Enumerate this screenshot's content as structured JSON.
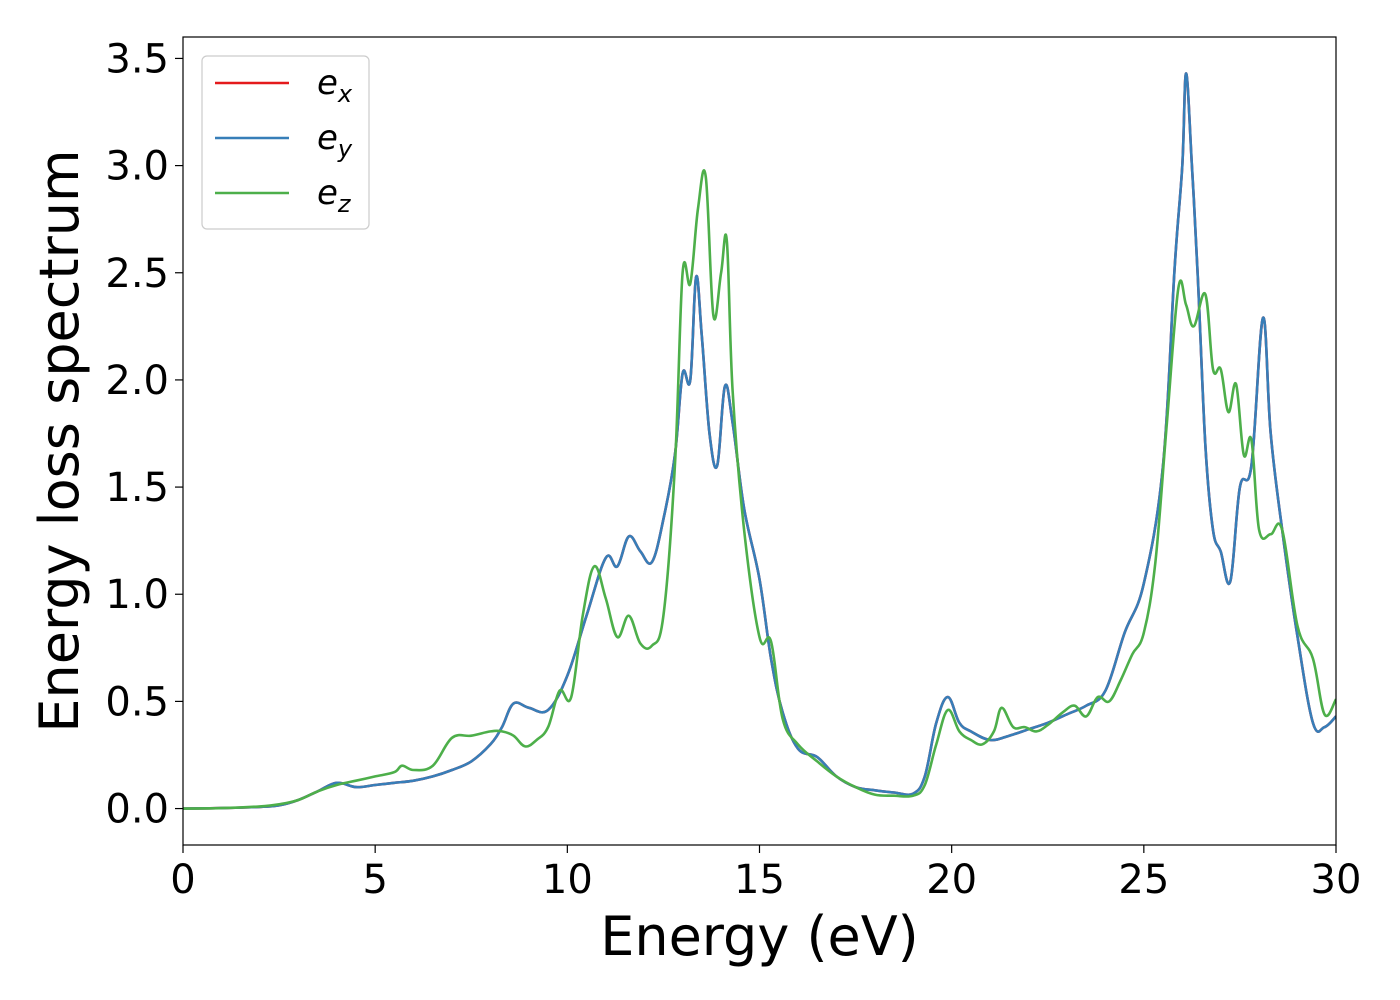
{
  "chart_data": {
    "type": "line",
    "title": "",
    "xlabel": "Energy (eV)",
    "ylabel": "Energy loss spectrum",
    "xlim": [
      0,
      30
    ],
    "ylim": [
      -0.17,
      3.6
    ],
    "xticks": [
      0,
      5,
      10,
      15,
      20,
      25,
      30
    ],
    "yticks": [
      0.0,
      0.5,
      1.0,
      1.5,
      2.0,
      2.5,
      3.0,
      3.5
    ],
    "xtick_labels": [
      "0",
      "5",
      "10",
      "15",
      "20",
      "25",
      "30"
    ],
    "ytick_labels": [
      "0.0",
      "0.5",
      "1.0",
      "1.5",
      "2.0",
      "2.5",
      "3.0",
      "3.5"
    ],
    "grid": false,
    "legend_position": "top-left",
    "series": [
      {
        "name_base": "e",
        "name_sub": "x",
        "color": "#e41a1c",
        "x": [
          0,
          1,
          2,
          2.5,
          3,
          3.5,
          4,
          4.5,
          5,
          5.5,
          6,
          6.5,
          7,
          7.5,
          8,
          8.3,
          8.6,
          9,
          9.5,
          10,
          10.5,
          11,
          11.3,
          11.6,
          11.9,
          12.2,
          12.5,
          12.8,
          13.0,
          13.2,
          13.35,
          13.5,
          13.7,
          13.9,
          14.1,
          14.3,
          14.6,
          15.0,
          15.3,
          15.6,
          16.0,
          16.5,
          17.0,
          17.5,
          18.0,
          18.5,
          19.0,
          19.3,
          19.6,
          19.9,
          20.2,
          20.5,
          21.0,
          21.5,
          22.0,
          22.5,
          23.0,
          23.5,
          24.0,
          24.5,
          25.0,
          25.5,
          25.8,
          26.0,
          26.1,
          26.25,
          26.4,
          26.6,
          26.8,
          27.0,
          27.25,
          27.5,
          27.8,
          28.1,
          28.3,
          28.6,
          29.0,
          29.4,
          29.7,
          30
        ],
        "y": [
          0,
          0.002,
          0.008,
          0.015,
          0.04,
          0.08,
          0.12,
          0.1,
          0.11,
          0.12,
          0.13,
          0.15,
          0.18,
          0.22,
          0.3,
          0.38,
          0.49,
          0.47,
          0.46,
          0.62,
          0.9,
          1.17,
          1.13,
          1.27,
          1.2,
          1.15,
          1.35,
          1.65,
          2.03,
          2.0,
          2.48,
          2.2,
          1.75,
          1.6,
          1.97,
          1.8,
          1.4,
          1.07,
          0.7,
          0.45,
          0.28,
          0.24,
          0.15,
          0.1,
          0.085,
          0.075,
          0.07,
          0.15,
          0.4,
          0.52,
          0.4,
          0.36,
          0.32,
          0.34,
          0.37,
          0.4,
          0.44,
          0.48,
          0.55,
          0.82,
          1.05,
          1.6,
          2.52,
          3.0,
          3.43,
          3.0,
          2.5,
          1.7,
          1.3,
          1.2,
          1.06,
          1.5,
          1.6,
          2.29,
          1.75,
          1.3,
          0.8,
          0.4,
          0.38,
          0.43
        ]
      },
      {
        "name_base": "e",
        "name_sub": "y",
        "color": "#377eb8",
        "x": [
          0,
          1,
          2,
          2.5,
          3,
          3.5,
          4,
          4.5,
          5,
          5.5,
          6,
          6.5,
          7,
          7.5,
          8,
          8.3,
          8.6,
          9,
          9.5,
          10,
          10.5,
          11,
          11.3,
          11.6,
          11.9,
          12.2,
          12.5,
          12.8,
          13.0,
          13.2,
          13.35,
          13.5,
          13.7,
          13.9,
          14.1,
          14.3,
          14.6,
          15.0,
          15.3,
          15.6,
          16.0,
          16.5,
          17.0,
          17.5,
          18.0,
          18.5,
          19.0,
          19.3,
          19.6,
          19.9,
          20.2,
          20.5,
          21.0,
          21.5,
          22.0,
          22.5,
          23.0,
          23.5,
          24.0,
          24.5,
          25.0,
          25.5,
          25.8,
          26.0,
          26.1,
          26.25,
          26.4,
          26.6,
          26.8,
          27.0,
          27.25,
          27.5,
          27.8,
          28.1,
          28.3,
          28.6,
          29.0,
          29.4,
          29.7,
          30
        ],
        "y": [
          0,
          0.002,
          0.008,
          0.015,
          0.04,
          0.08,
          0.12,
          0.1,
          0.11,
          0.12,
          0.13,
          0.15,
          0.18,
          0.22,
          0.3,
          0.38,
          0.49,
          0.47,
          0.46,
          0.62,
          0.9,
          1.17,
          1.13,
          1.27,
          1.2,
          1.15,
          1.35,
          1.65,
          2.03,
          2.0,
          2.48,
          2.2,
          1.75,
          1.6,
          1.97,
          1.8,
          1.4,
          1.07,
          0.7,
          0.45,
          0.28,
          0.24,
          0.15,
          0.1,
          0.085,
          0.075,
          0.07,
          0.15,
          0.4,
          0.52,
          0.4,
          0.36,
          0.32,
          0.34,
          0.37,
          0.4,
          0.44,
          0.48,
          0.55,
          0.82,
          1.05,
          1.6,
          2.52,
          3.0,
          3.43,
          3.0,
          2.5,
          1.7,
          1.3,
          1.2,
          1.06,
          1.5,
          1.6,
          2.29,
          1.75,
          1.3,
          0.8,
          0.4,
          0.38,
          0.43
        ]
      },
      {
        "name_base": "e",
        "name_sub": "z",
        "color": "#4daf4a",
        "x": [
          0,
          1,
          2,
          2.5,
          3,
          3.5,
          4,
          4.5,
          5,
          5.5,
          5.7,
          6,
          6.5,
          7,
          7.5,
          8,
          8.3,
          8.6,
          8.9,
          9.2,
          9.5,
          9.8,
          10.1,
          10.4,
          10.7,
          11.0,
          11.3,
          11.6,
          11.9,
          12.2,
          12.5,
          12.8,
          13.0,
          13.2,
          13.4,
          13.6,
          13.8,
          14.0,
          14.15,
          14.3,
          14.6,
          15.0,
          15.3,
          15.6,
          16.0,
          16.5,
          17.0,
          17.5,
          18.0,
          18.5,
          19.0,
          19.3,
          19.6,
          19.9,
          20.2,
          20.5,
          20.8,
          21.1,
          21.3,
          21.6,
          21.9,
          22.2,
          22.5,
          22.9,
          23.2,
          23.5,
          23.8,
          24.1,
          24.4,
          24.7,
          25.0,
          25.3,
          25.6,
          25.9,
          26.1,
          26.3,
          26.6,
          26.8,
          27.0,
          27.2,
          27.4,
          27.6,
          27.8,
          28.0,
          28.3,
          28.6,
          29.0,
          29.4,
          29.7,
          30
        ],
        "y": [
          0,
          0.002,
          0.01,
          0.02,
          0.04,
          0.08,
          0.11,
          0.13,
          0.15,
          0.17,
          0.2,
          0.18,
          0.2,
          0.33,
          0.34,
          0.36,
          0.36,
          0.34,
          0.29,
          0.32,
          0.38,
          0.55,
          0.52,
          0.9,
          1.13,
          0.98,
          0.8,
          0.9,
          0.77,
          0.76,
          0.9,
          1.6,
          2.5,
          2.45,
          2.8,
          2.95,
          2.3,
          2.5,
          2.65,
          1.95,
          1.3,
          0.8,
          0.78,
          0.42,
          0.3,
          0.22,
          0.15,
          0.1,
          0.065,
          0.06,
          0.06,
          0.11,
          0.3,
          0.46,
          0.36,
          0.32,
          0.3,
          0.36,
          0.47,
          0.38,
          0.38,
          0.36,
          0.39,
          0.45,
          0.48,
          0.43,
          0.52,
          0.5,
          0.6,
          0.72,
          0.82,
          1.15,
          1.8,
          2.43,
          2.35,
          2.25,
          2.4,
          2.05,
          2.05,
          1.85,
          1.98,
          1.65,
          1.72,
          1.3,
          1.28,
          1.3,
          0.85,
          0.7,
          0.44,
          0.51
        ]
      }
    ]
  }
}
